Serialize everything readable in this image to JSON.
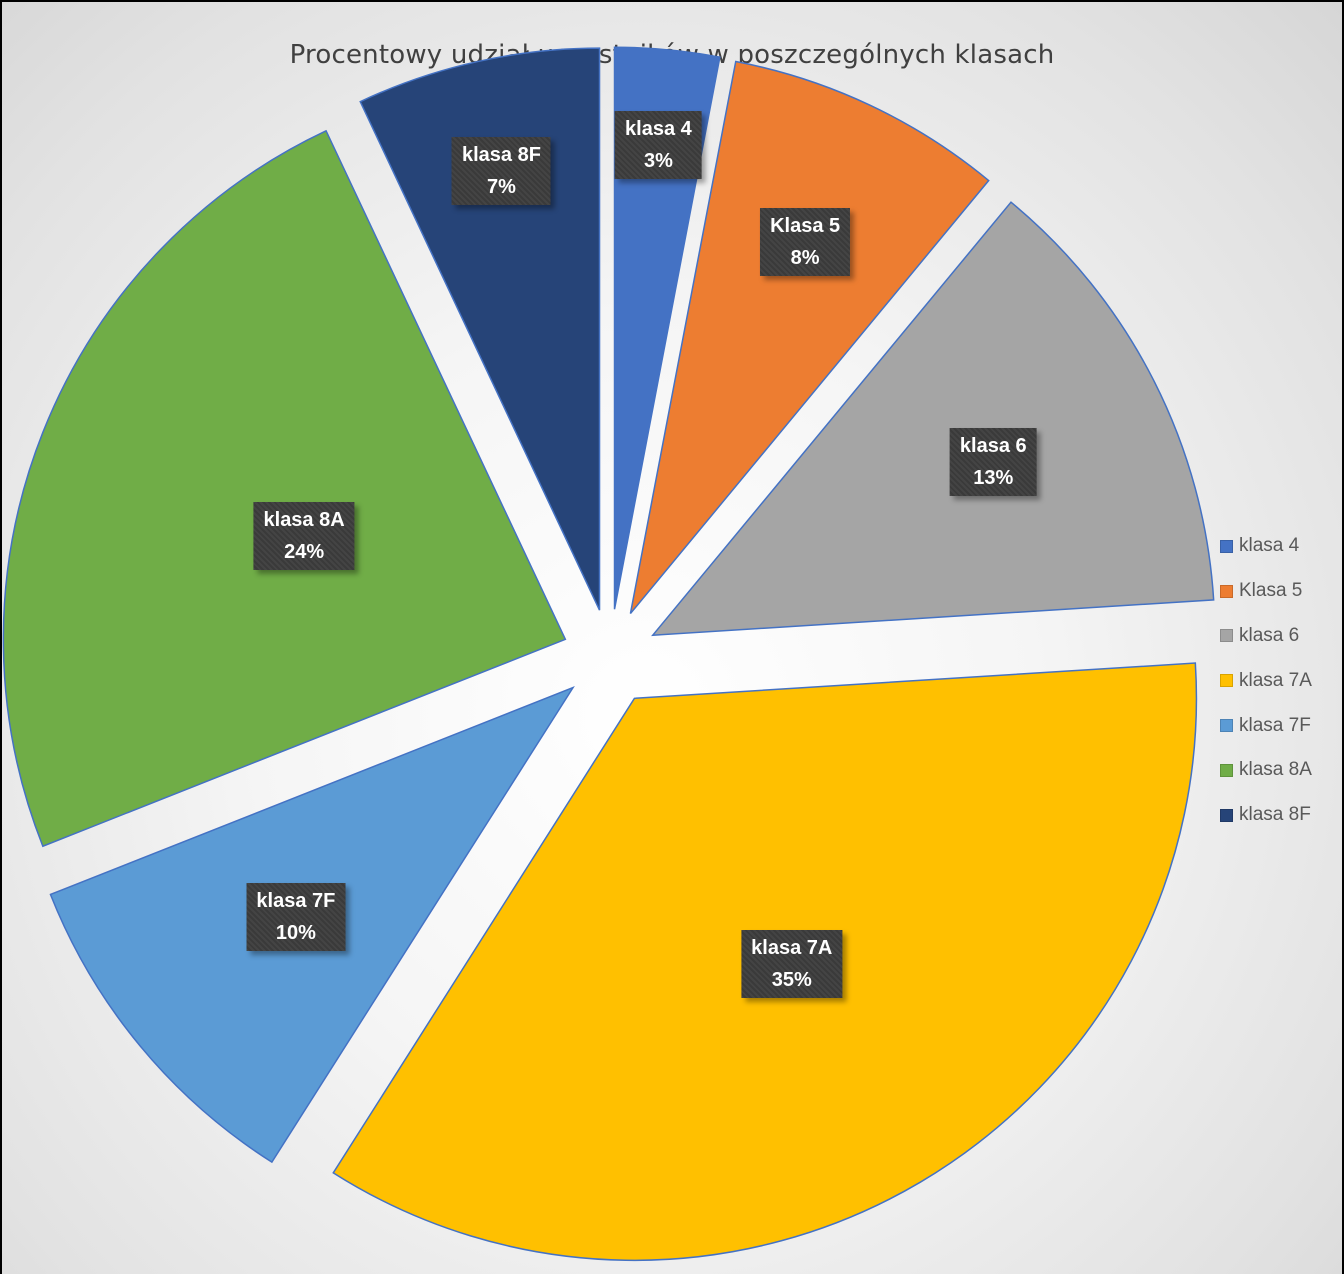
{
  "chart_data": {
    "type": "pie",
    "title": "Procentowy udział uczestników w poszczególnych klasach",
    "categories": [
      "klasa 4",
      "Klasa 5",
      "klasa 6",
      "klasa 7A",
      "klasa 7F",
      "klasa 8A",
      "klasa 8F"
    ],
    "values": [
      3,
      8,
      13,
      35,
      10,
      24,
      7
    ],
    "value_unit": "%",
    "data_labels": [
      {
        "name": "klasa 4",
        "pct": "3%"
      },
      {
        "name": "Klasa 5",
        "pct": "8%"
      },
      {
        "name": "klasa 6",
        "pct": "13%"
      },
      {
        "name": "klasa 7A",
        "pct": "35%"
      },
      {
        "name": "klasa 7F",
        "pct": "10%"
      },
      {
        "name": "klasa 8A",
        "pct": "24%"
      },
      {
        "name": "klasa 8F",
        "pct": "7%"
      }
    ],
    "colors": [
      "#4472C4",
      "#ED7D31",
      "#A5A5A5",
      "#FFC000",
      "#5B9BD5",
      "#70AD47",
      "#264478"
    ],
    "exploded": true,
    "legend_position": "right"
  }
}
